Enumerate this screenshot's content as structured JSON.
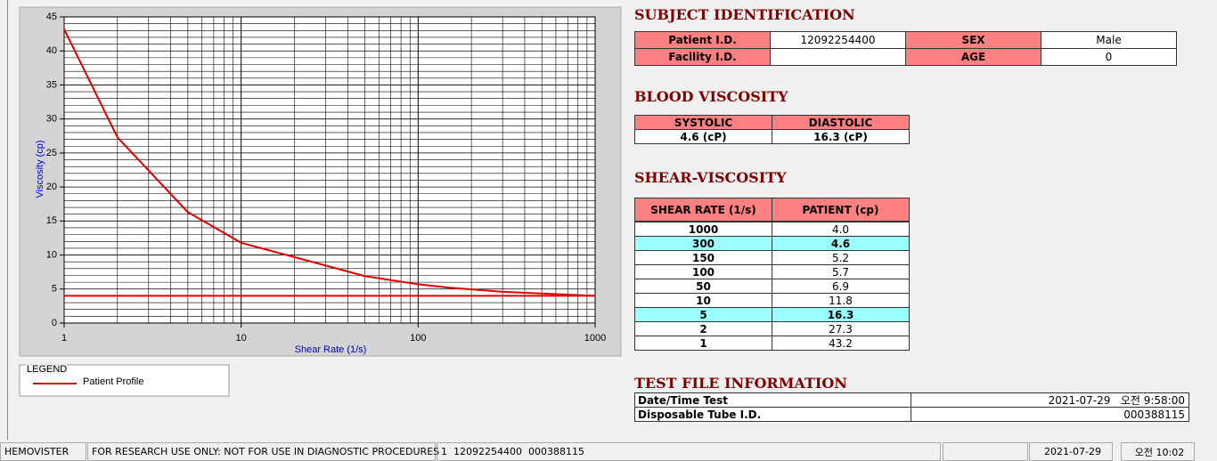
{
  "chart_data": {
    "type": "line",
    "xlabel": "Shear Rate (1/s)",
    "ylabel": "Viscosity (cp)",
    "xscale": "log",
    "xlim": [
      1,
      1000
    ],
    "ylim": [
      0,
      45
    ],
    "xticks": [
      1,
      10,
      100,
      1000
    ],
    "yticks": [
      0,
      5,
      10,
      15,
      20,
      25,
      30,
      35,
      40,
      45
    ],
    "grid": true,
    "minor_grid": true,
    "legend_title": "LEGEND",
    "series": [
      {
        "name": "Patient Profile",
        "color": "#e00000",
        "x": [
          1,
          2,
          5,
          10,
          50,
          100,
          150,
          300,
          1000
        ],
        "values": [
          43.2,
          27.3,
          16.3,
          11.8,
          6.9,
          5.7,
          5.2,
          4.6,
          4.0
        ]
      },
      {
        "color": "#e00000",
        "x": [
          1,
          1000
        ],
        "values": [
          4.0,
          4.0
        ]
      }
    ]
  },
  "subject_identification": {
    "title": "SUBJECT IDENTIFICATION",
    "rows": [
      [
        "Patient I.D.",
        "12092254400",
        "SEX",
        "Male"
      ],
      [
        "Facility I.D.",
        null,
        "AGE",
        "0"
      ]
    ]
  },
  "blood_viscosity": {
    "title": "BLOOD VISCOSITY",
    "headers": [
      "SYSTOLIC",
      "DIASTOLIC"
    ],
    "values": [
      "4.6 (cP)",
      "16.3 (cP)"
    ]
  },
  "shear_viscosity": {
    "title": "SHEAR-VISCOSITY",
    "headers": [
      "SHEAR RATE (1/s)",
      "PATIENT (cp)"
    ],
    "highlight_color": "#99ffff",
    "rows": [
      {
        "cells": [
          "1000",
          "4.0"
        ],
        "highlight": false
      },
      {
        "cells": [
          "300",
          "4.6"
        ],
        "highlight": true
      },
      {
        "cells": [
          "150",
          "5.2"
        ],
        "highlight": false
      },
      {
        "cells": [
          "100",
          "5.7"
        ],
        "highlight": false
      },
      {
        "cells": [
          "50",
          "6.9"
        ],
        "highlight": false
      },
      {
        "cells": [
          "10",
          "11.8"
        ],
        "highlight": false
      },
      {
        "cells": [
          "5",
          "16.3"
        ],
        "highlight": true
      },
      {
        "cells": [
          "2",
          "27.3"
        ],
        "highlight": false
      },
      {
        "cells": [
          "1",
          "43.2"
        ],
        "highlight": false
      }
    ]
  },
  "test_file_information": {
    "title": "TEST FILE INFORMATION",
    "rows": [
      [
        "Date/Time Test",
        "2021-07-29   오전 9:58:00"
      ],
      [
        "Disposable Tube I.D.",
        "000388115"
      ]
    ]
  },
  "status_bar": [
    "HEMOVISTER",
    "FOR RESEARCH USE ONLY: NOT FOR USE IN DIAGNOSTIC PROCEDURES",
    "1  12092254400  000388115",
    null,
    "2021-07-29",
    "오전 10:02"
  ]
}
